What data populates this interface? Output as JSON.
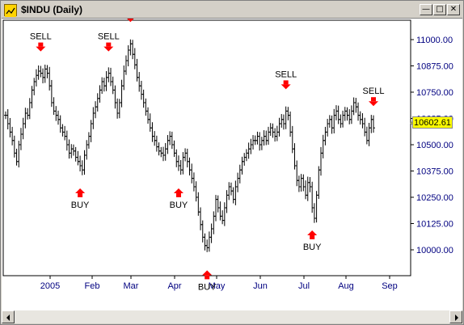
{
  "window": {
    "title": "$INDU (Daily)",
    "controls": [
      "minimize",
      "maximize",
      "close"
    ]
  },
  "last_price_label": "10602.61",
  "chart_data": {
    "type": "bar",
    "symbol": "$INDU",
    "period": "Daily",
    "y_ticks": [
      "11000.00",
      "10875.00",
      "10750.00",
      "10625.00",
      "10500.00",
      "10375.00",
      "10250.00",
      "10125.00",
      "10000.00"
    ],
    "ylim": [
      9950,
      11050
    ],
    "x_ticks": [
      "2005",
      "Feb",
      "Mar",
      "Apr",
      "May",
      "Jun",
      "Jul",
      "Aug",
      "Sep"
    ],
    "last_value": 10602.61,
    "close_series": [
      10640,
      10600,
      10560,
      10520,
      10460,
      10420,
      10500,
      10550,
      10600,
      10650,
      10640,
      10700,
      10760,
      10800,
      10830,
      10850,
      10840,
      10820,
      10860,
      10840,
      10780,
      10700,
      10660,
      10640,
      10620,
      10580,
      10560,
      10540,
      10500,
      10460,
      10480,
      10470,
      10440,
      10420,
      10400,
      10380,
      10450,
      10500,
      10540,
      10600,
      10650,
      10680,
      10720,
      10760,
      10800,
      10780,
      10820,
      10840,
      10800,
      10760,
      10700,
      10650,
      10700,
      10780,
      10850,
      10900,
      10950,
      10980,
      10930,
      10880,
      10820,
      10780,
      10740,
      10700,
      10660,
      10620,
      10580,
      10540,
      10520,
      10490,
      10470,
      10460,
      10450,
      10480,
      10520,
      10540,
      10500,
      10460,
      10420,
      10400,
      10380,
      10440,
      10460,
      10420,
      10380,
      10340,
      10300,
      10250,
      10180,
      10120,
      10060,
      10020,
      10010,
      10060,
      10100,
      10160,
      10240,
      10200,
      10160,
      10140,
      10200,
      10260,
      10300,
      10280,
      10240,
      10300,
      10340,
      10380,
      10420,
      10440,
      10460,
      10480,
      10500,
      10520,
      10520,
      10540,
      10500,
      10520,
      10540,
      10520,
      10560,
      10580,
      10560,
      10540,
      10560,
      10600,
      10620,
      10600,
      10660,
      10640,
      10560,
      10480,
      10400,
      10330,
      10300,
      10340,
      10300,
      10260,
      10320,
      10300,
      10200,
      10150,
      10260,
      10380,
      10460,
      10520,
      10560,
      10600,
      10620,
      10580,
      10640,
      10660,
      10620,
      10600,
      10640,
      10660,
      10640,
      10620,
      10660,
      10700,
      10680,
      10640,
      10620,
      10600,
      10560,
      10520,
      10580,
      10620,
      10580
    ],
    "signals": [
      {
        "label": "SELL",
        "type": "sell",
        "index": 16
      },
      {
        "label": "BUY",
        "type": "buy",
        "index": 34
      },
      {
        "label": "SELL",
        "type": "sell",
        "index": 47
      },
      {
        "label": "SELL",
        "type": "sell",
        "index": 57
      },
      {
        "label": "BUY",
        "type": "buy",
        "index": 79
      },
      {
        "label": "BUY",
        "type": "buy",
        "index": 92
      },
      {
        "label": "SELL",
        "type": "sell",
        "index": 128
      },
      {
        "label": "BUY",
        "type": "buy",
        "index": 140
      },
      {
        "label": "SELL",
        "type": "sell",
        "index": 168
      }
    ],
    "colors": {
      "bars": "#000000",
      "buy_arrow": "#ff0000",
      "sell_arrow": "#ff0000",
      "axis_text": "#000080",
      "price_badge": "#ffff00"
    }
  }
}
